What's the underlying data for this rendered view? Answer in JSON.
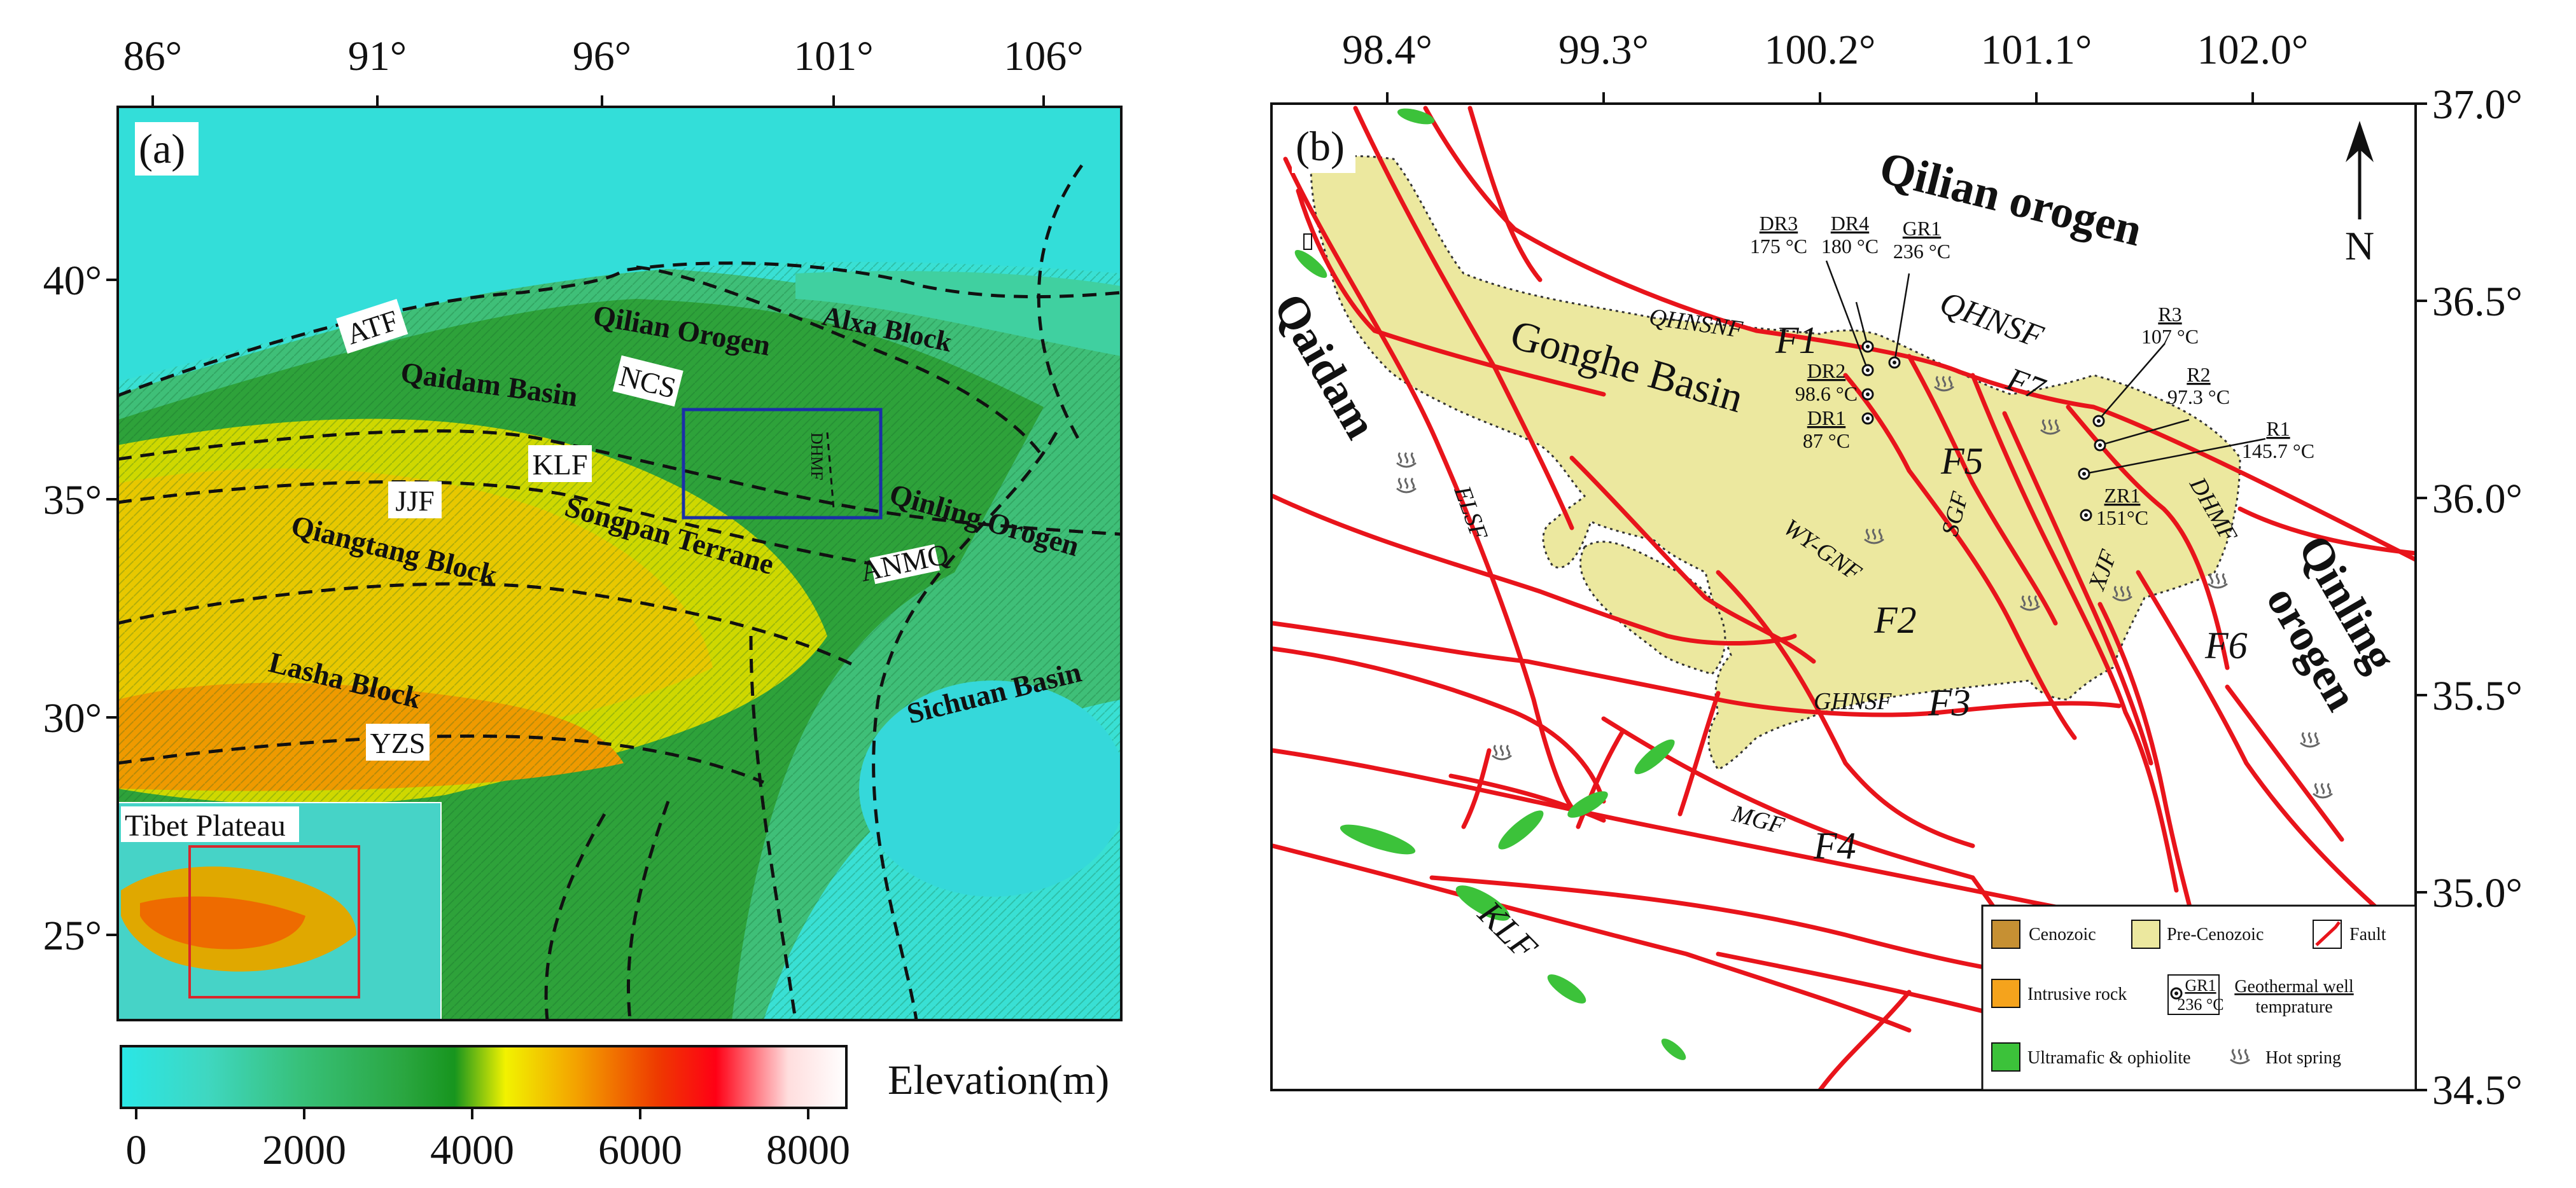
{
  "panel_a": {
    "panel_label": "(a)",
    "lon_ticks": [
      "86°",
      "91°",
      "96°",
      "101°",
      "106°"
    ],
    "lat_ticks": [
      "40°",
      "35°",
      "30°",
      "25°"
    ],
    "fault_labels": [
      "ATF",
      "NCS",
      "KLF",
      "JJF",
      "ANMQ",
      "YZS",
      "DHMF"
    ],
    "block_labels": {
      "qilian_orogen": "Qilian Orogen",
      "alxa_block": "Alxa Block",
      "qaidam_basin": "Qaidam Basin",
      "songpan_terrane": "Songpan Terrane",
      "qinling_orogen": "Qinling Orogen",
      "qiangtang_block": "Qiangtang Block",
      "lasha_block": "Lasha Block",
      "sichuan_basin": "Sichuan Basin"
    },
    "inset_label": "Tibet Plateau",
    "colorbar": {
      "title": "Elevation(m)",
      "ticks": [
        "0",
        "2000",
        "4000",
        "6000",
        "8000"
      ],
      "range": [
        0,
        8500
      ],
      "colors": [
        "#2ae6e6",
        "#3fd7c0",
        "#37c078",
        "#2aa640",
        "#17951e",
        "#f2f200",
        "#f3a000",
        "#ee3a00",
        "#ff0015",
        "#ffdede",
        "#ffffff"
      ]
    },
    "study_area_color": "#1b2fa8",
    "inset_frame_color": "#d8272c"
  },
  "panel_b": {
    "panel_label": "(b)",
    "lon_ticks": [
      "98.4°",
      "99.3°",
      "100.2°",
      "101.1°",
      "102.0°"
    ],
    "lat_ticks": [
      "37.0°",
      "36.5°",
      "36.0°",
      "35.5°",
      "35.0°",
      "34.5°"
    ],
    "north_label": "N",
    "region_labels": {
      "qilian_orogen": "Qilian orogen",
      "qaidam": "Qaidam",
      "qinling_line1": "Qinling",
      "qinling_line2": "orogen",
      "gonghe_basin": "Gonghe Basin"
    },
    "fault_names": {
      "qhnsnf": "QHNSNF",
      "qhnsf": "QHNSF",
      "elsf": "ELSF",
      "wygnf": "WY-GNF",
      "sgf": "SGF",
      "xjf": "XJF",
      "dhmf": "DHMF",
      "ghnsf": "GHNSF",
      "mgf": "MGF",
      "klf": "KLF"
    },
    "fault_numbers": [
      "F1",
      "F2",
      "F3",
      "F4",
      "F5",
      "F6",
      "F7"
    ],
    "wells": [
      {
        "name": "DR3",
        "temp": "175 °C"
      },
      {
        "name": "DR4",
        "temp": "180 °C"
      },
      {
        "name": "GR1",
        "temp": "236 °C"
      },
      {
        "name": "DR2",
        "temp": "98.6 °C"
      },
      {
        "name": "DR1",
        "temp": "87 °C"
      },
      {
        "name": "R3",
        "temp": "107 °C"
      },
      {
        "name": "R2",
        "temp": "97.3 °C"
      },
      {
        "name": "R1",
        "temp": "145.7 °C"
      },
      {
        "name": "ZR1",
        "temp": "151°C"
      }
    ],
    "legend": {
      "cenozoic": "Cenozoic",
      "pre_cenozoic": "Pre-Cenozoic",
      "fault": "Fault",
      "intrusive": "Intrusive rock",
      "well_sample_name": "GR1",
      "well_sample_temp": "236 °C",
      "geothermal_line1": "Geothermal well",
      "geothermal_line2": "temprature",
      "ultramafic": "Ultramafic & ophiolite",
      "hot_spring": "Hot spring"
    },
    "colors": {
      "cenozoic": "#c69033",
      "pre_cenozoic": "#ece89f",
      "intrusive": "#f5a31c",
      "ultramafic": "#3cc23a",
      "fault": "#e8141b"
    }
  }
}
